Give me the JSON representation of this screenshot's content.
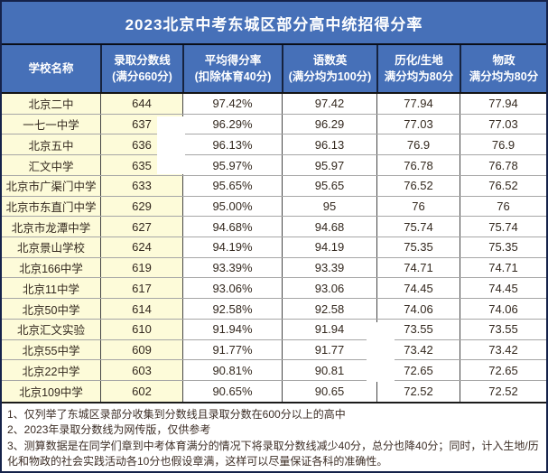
{
  "header": {
    "columns": [
      {
        "line1": "学校名称",
        "line2": ""
      },
      {
        "line1": "录取分数线",
        "line2": "(满分660分)"
      },
      {
        "line1": "平均得分率",
        "line2": "(扣除体育40分)"
      },
      {
        "line1": "语数英",
        "line2": "(满分均为100分)"
      },
      {
        "line1": "历化/生地",
        "line2": "满分均为80分"
      },
      {
        "line1": "物政",
        "line2": "满分均为80分"
      }
    ]
  },
  "chart_data": {
    "type": "table",
    "title": "2023北京中考东城区部分高中统招得分率",
    "columns": [
      "学校名称",
      "录取分数线(满分660分)",
      "平均得分率(扣除体育40分)",
      "语数英(满分均为100分)",
      "历化/生地(满分均为80分)",
      "物政(满分均为80分)"
    ],
    "rows": [
      [
        "北京二中",
        "644",
        "97.42%",
        "97.42",
        "77.94",
        "77.94"
      ],
      [
        "一七一中学",
        "637",
        "96.29%",
        "96.29",
        "77.03",
        "77.03"
      ],
      [
        "北京五中",
        "636",
        "96.13%",
        "96.13",
        "76.9",
        "76.9"
      ],
      [
        "汇文中学",
        "635",
        "95.97%",
        "95.97",
        "76.78",
        "76.78"
      ],
      [
        "北京市广渠门中学",
        "633",
        "95.65%",
        "95.65",
        "76.52",
        "76.52"
      ],
      [
        "北京市东直门中学",
        "629",
        "95.00%",
        "95",
        "76",
        "76"
      ],
      [
        "北京市龙潭中学",
        "627",
        "94.68%",
        "94.68",
        "75.74",
        "75.74"
      ],
      [
        "北京景山学校",
        "624",
        "94.19%",
        "94.19",
        "75.35",
        "75.35"
      ],
      [
        "北京166中学",
        "619",
        "93.39%",
        "93.39",
        "74.71",
        "74.71"
      ],
      [
        "北京11中学",
        "617",
        "93.06%",
        "93.06",
        "74.45",
        "74.45"
      ],
      [
        "北京50中学",
        "614",
        "92.58%",
        "92.58",
        "74.06",
        "74.06"
      ],
      [
        "北京汇文实验",
        "610",
        "91.94%",
        "91.94",
        "73.55",
        "73.55"
      ],
      [
        "北京55中学",
        "609",
        "91.77%",
        "91.77",
        "73.42",
        "73.42"
      ],
      [
        "北京22中学",
        "603",
        "90.81%",
        "90.81",
        "72.65",
        "72.65"
      ],
      [
        "北京109中学",
        "602",
        "90.65%",
        "90.65",
        "72.52",
        "72.52"
      ]
    ],
    "notes": [
      "1、仅列举了东城区录部分收集到分数线且录取分数在600分以上的高中",
      "2、2023年录取分数线为网传版，仅供参考",
      "3、测算数据是在同学们章到中考体育满分的情况下将录取分数线减少40分，总分也降40分；同时，计入生地/历化和物政的社会实践活动各10分也假设章满，这样可以尽量保证各科的准确性。"
    ]
  },
  "colors": {
    "header_blue": "#4670b8",
    "border_navy": "#15224a",
    "cell_yellow": "#fdfbd9",
    "grid_dark": "#454545",
    "grid_light": "#a6a6a6",
    "text_dark": "#33281e",
    "header_text": "#ffffff"
  }
}
